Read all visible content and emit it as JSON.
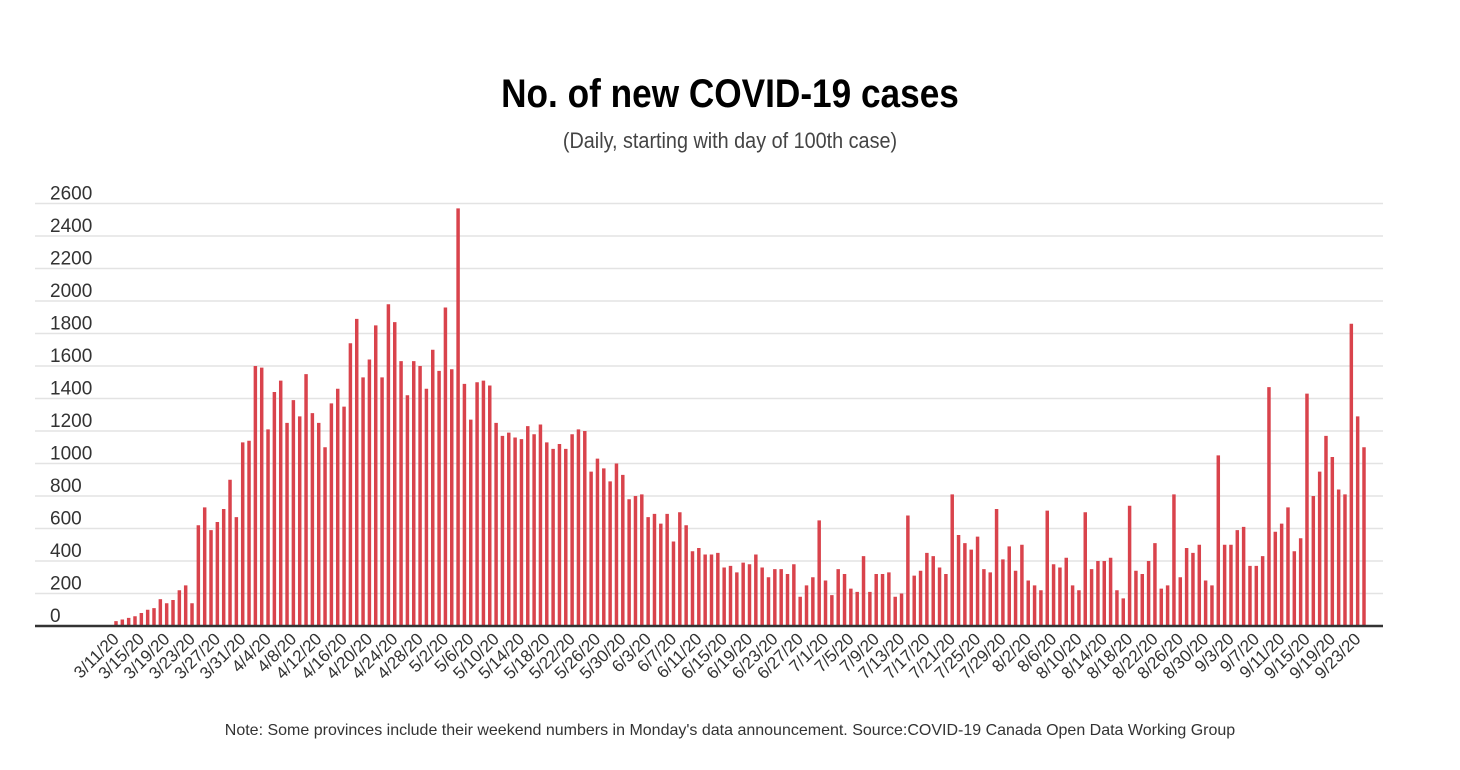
{
  "chart_data": {
    "type": "bar",
    "title": "No. of new COVID-19 cases",
    "subtitle": "(Daily, starting with day of 100th case)",
    "note": "Note: Some provinces include their weekend numbers in Monday's data announcement. Source:COVID-19 Canada Open Data Working Group",
    "xlabel": "",
    "ylabel": "",
    "ylim": [
      0,
      2600
    ],
    "yticks": [
      0,
      200,
      400,
      600,
      800,
      1000,
      1200,
      1400,
      1600,
      1800,
      2000,
      2200,
      2400,
      2600
    ],
    "grid": true,
    "legend": "none",
    "bar_color": "#d9434c",
    "x_tick_labels": [
      "3/11/20",
      "3/15/20",
      "3/19/20",
      "3/23/20",
      "3/27/20",
      "3/31/20",
      "4/4/20",
      "4/8/20",
      "4/12/20",
      "4/16/20",
      "4/20/20",
      "4/24/20",
      "4/28/20",
      "5/2/20",
      "5/6/20",
      "5/10/20",
      "5/14/20",
      "5/18/20",
      "5/22/20",
      "5/26/20",
      "5/30/20",
      "6/3/20",
      "6/7/20",
      "6/11/20",
      "6/15/20",
      "6/19/20",
      "6/23/20",
      "6/27/20",
      "7/1/20",
      "7/5/20",
      "7/9/20",
      "7/13/20",
      "7/17/20",
      "7/21/20",
      "7/25/20",
      "7/29/20",
      "8/2/20",
      "8/6/20",
      "8/10/20",
      "8/14/20",
      "8/18/20",
      "8/22/20",
      "8/26/20",
      "8/30/20",
      "9/3/20",
      "9/7/20",
      "9/11/20",
      "9/15/20",
      "9/19/20",
      "9/23/20"
    ],
    "x_start": "3/11/20",
    "values": [
      30,
      40,
      50,
      60,
      80,
      100,
      110,
      165,
      140,
      160,
      220,
      250,
      140,
      620,
      730,
      590,
      640,
      720,
      900,
      670,
      1130,
      1140,
      1600,
      1590,
      1210,
      1440,
      1510,
      1250,
      1390,
      1290,
      1550,
      1310,
      1250,
      1100,
      1370,
      1460,
      1350,
      1740,
      1890,
      1530,
      1640,
      1850,
      1530,
      1980,
      1870,
      1630,
      1420,
      1630,
      1600,
      1460,
      1700,
      1570,
      1960,
      1580,
      2570,
      1490,
      1270,
      1500,
      1510,
      1480,
      1250,
      1170,
      1190,
      1160,
      1150,
      1230,
      1180,
      1240,
      1130,
      1090,
      1120,
      1090,
      1180,
      1210,
      1200,
      950,
      1030,
      970,
      890,
      1000,
      930,
      780,
      800,
      810,
      670,
      690,
      630,
      690,
      520,
      700,
      620,
      460,
      480,
      440,
      440,
      450,
      360,
      370,
      330,
      390,
      380,
      440,
      360,
      300,
      350,
      350,
      320,
      380,
      180,
      250,
      300,
      650,
      280,
      190,
      350,
      320,
      230,
      210,
      430,
      210,
      320,
      320,
      330,
      180,
      200,
      680,
      310,
      340,
      450,
      430,
      360,
      320,
      810,
      560,
      510,
      470,
      550,
      350,
      330,
      720,
      410,
      490,
      340,
      500,
      280,
      250,
      220,
      710,
      380,
      360,
      420,
      250,
      220,
      700,
      350,
      400,
      400,
      420,
      220,
      170,
      740,
      340,
      320,
      400,
      510,
      230,
      250,
      810,
      300,
      480,
      450,
      500,
      280,
      250,
      1050,
      500,
      500,
      590,
      610,
      370,
      370,
      430,
      1470,
      580,
      630,
      730,
      460,
      540,
      1430,
      800,
      950,
      1170,
      1040,
      840,
      810,
      1860,
      1290,
      1100
    ]
  }
}
